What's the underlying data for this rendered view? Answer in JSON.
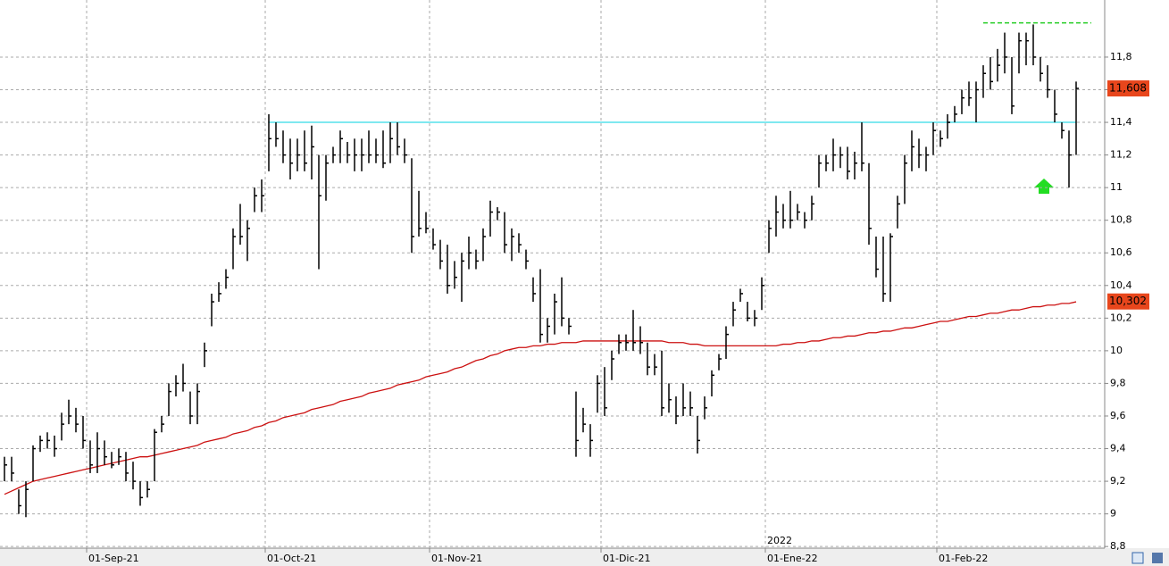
{
  "chart_data": {
    "type": "ohlc",
    "ylim": [
      8.79,
      12.15
    ],
    "yticks": [
      {
        "value": 8.8,
        "label": "8,8"
      },
      9,
      {
        "value": 9.2,
        "label": "9,2"
      },
      {
        "value": 9.4,
        "label": "9,4"
      },
      {
        "value": 9.6,
        "label": "9,6"
      },
      {
        "value": 9.8,
        "label": "9,8"
      },
      10,
      {
        "value": 10.2,
        "label": "10,2"
      },
      {
        "value": 10.4,
        "label": "10,4"
      },
      {
        "value": 10.6,
        "label": "10,6"
      },
      {
        "value": 10.8,
        "label": "10,8"
      },
      11,
      {
        "value": 11.2,
        "label": "11,2"
      },
      {
        "value": 11.4,
        "label": "11,4"
      },
      {
        "value": 11.6,
        "label": "11,6"
      },
      {
        "value": 11.8,
        "label": "11,8"
      }
    ],
    "grid": true,
    "color": "#000000",
    "categories": [
      null,
      null,
      null,
      null,
      null,
      null,
      null,
      null,
      null,
      null,
      null,
      null,
      "01-Sep-21",
      null,
      null,
      null,
      null,
      null,
      null,
      null,
      null,
      null,
      null,
      null,
      null,
      null,
      null,
      null,
      null,
      null,
      null,
      null,
      null,
      null,
      null,
      null,
      null,
      "01-Oct-21",
      null,
      null,
      null,
      null,
      null,
      null,
      null,
      null,
      null,
      null,
      null,
      null,
      null,
      null,
      null,
      null,
      null,
      null,
      null,
      null,
      null,
      null,
      "01-Nov-21",
      null,
      null,
      null,
      null,
      null,
      null,
      null,
      null,
      null,
      null,
      null,
      null,
      null,
      null,
      null,
      null,
      null,
      null,
      null,
      null,
      null,
      null,
      null,
      "01-Dic-21",
      null,
      null,
      null,
      null,
      null,
      null,
      null,
      null,
      null,
      null,
      null,
      null,
      null,
      null,
      null,
      null,
      null,
      null,
      null,
      null,
      null,
      null,
      "01-Ene-22",
      null,
      null,
      null,
      null,
      null,
      null,
      null,
      null,
      null,
      null,
      null,
      null,
      null,
      null,
      null,
      null,
      null,
      null,
      null,
      null,
      null,
      null,
      null,
      "01-Feb-22",
      null,
      null,
      null,
      null,
      null,
      null,
      null,
      null,
      null,
      null,
      null,
      null,
      null,
      null,
      null,
      null,
      null,
      null,
      null
    ],
    "annotations": [
      "2022"
    ],
    "high": [
      9.35,
      9.35,
      9.15,
      9.2,
      9.42,
      9.48,
      9.5,
      9.48,
      9.62,
      9.7,
      9.65,
      9.6,
      9.45,
      9.5,
      9.45,
      9.38,
      9.4,
      9.38,
      9.32,
      9.2,
      9.2,
      9.52,
      9.6,
      9.8,
      9.85,
      9.92,
      9.75,
      9.8,
      10.05,
      10.35,
      10.42,
      10.5,
      10.75,
      10.9,
      10.8,
      11.0,
      11.05,
      11.45,
      11.4,
      11.35,
      11.3,
      11.3,
      11.35,
      11.38,
      11.2,
      11.2,
      11.25,
      11.35,
      11.28,
      11.3,
      11.3,
      11.35,
      11.3,
      11.35,
      11.4,
      11.4,
      11.3,
      11.18,
      10.98,
      10.85,
      10.75,
      10.68,
      10.65,
      10.55,
      10.6,
      10.7,
      10.62,
      10.75,
      10.92,
      10.88,
      10.85,
      10.75,
      10.72,
      10.62,
      10.45,
      10.5,
      10.2,
      10.35,
      10.45,
      10.2,
      9.75,
      9.65,
      9.55,
      9.85,
      9.9,
      10.0,
      10.1,
      10.1,
      10.25,
      10.15,
      10.05,
      9.98,
      10.0,
      9.8,
      9.72,
      9.8,
      9.75,
      9.6,
      9.72,
      9.88,
      9.98,
      10.15,
      10.3,
      10.38,
      10.3,
      10.25,
      10.45,
      10.8,
      10.95,
      10.9,
      10.98,
      10.9,
      10.85,
      10.95,
      11.2,
      11.2,
      11.3,
      11.25,
      11.25,
      11.22,
      11.4,
      11.15,
      10.7,
      10.7,
      10.72,
      10.95,
      11.2,
      11.35,
      11.3,
      11.25,
      11.4,
      11.35,
      11.45,
      11.5,
      11.6,
      11.65,
      11.65,
      11.75,
      11.8,
      11.85,
      11.95,
      11.8,
      11.95,
      11.95,
      12.0,
      11.8,
      11.75,
      11.6,
      11.4,
      11.35,
      11.65
    ],
    "low": [
      9.2,
      9.2,
      9.0,
      8.98,
      9.2,
      9.38,
      9.4,
      9.35,
      9.45,
      9.55,
      9.5,
      9.4,
      9.25,
      9.25,
      9.3,
      9.28,
      9.3,
      9.2,
      9.15,
      9.05,
      9.1,
      9.2,
      9.5,
      9.6,
      9.72,
      9.75,
      9.55,
      9.55,
      9.9,
      10.15,
      10.3,
      10.38,
      10.5,
      10.65,
      10.55,
      10.85,
      10.85,
      11.1,
      11.25,
      11.15,
      11.05,
      11.1,
      11.1,
      11.05,
      10.5,
      10.92,
      11.15,
      11.15,
      11.15,
      11.1,
      11.1,
      11.15,
      11.15,
      11.12,
      11.15,
      11.2,
      11.15,
      10.6,
      10.7,
      10.72,
      10.62,
      10.5,
      10.35,
      10.38,
      10.3,
      10.5,
      10.5,
      10.55,
      10.7,
      10.8,
      10.6,
      10.55,
      10.6,
      10.5,
      10.3,
      10.05,
      10.05,
      10.1,
      10.15,
      10.1,
      9.35,
      9.5,
      9.35,
      9.62,
      9.6,
      9.82,
      9.98,
      10.0,
      10.0,
      9.98,
      9.85,
      9.85,
      9.6,
      9.62,
      9.55,
      9.6,
      9.6,
      9.37,
      9.58,
      9.72,
      9.88,
      9.95,
      10.15,
      10.3,
      10.18,
      10.15,
      10.25,
      10.6,
      10.7,
      10.75,
      10.75,
      10.8,
      10.75,
      10.8,
      11.0,
      11.1,
      11.1,
      11.12,
      11.05,
      11.05,
      11.1,
      10.65,
      10.45,
      10.3,
      10.3,
      10.75,
      10.9,
      11.1,
      11.12,
      11.1,
      11.2,
      11.25,
      11.3,
      11.4,
      11.45,
      11.5,
      11.4,
      11.55,
      11.6,
      11.65,
      11.7,
      11.45,
      11.7,
      11.75,
      11.75,
      11.65,
      11.55,
      11.4,
      11.3,
      11.0,
      11.2
    ],
    "close": [
      9.3,
      9.25,
      9.05,
      9.15,
      9.4,
      9.45,
      9.45,
      9.4,
      9.55,
      9.6,
      9.55,
      9.45,
      9.3,
      9.4,
      9.35,
      9.3,
      9.35,
      9.25,
      9.2,
      9.1,
      9.15,
      9.5,
      9.55,
      9.75,
      9.8,
      9.8,
      9.6,
      9.75,
      10.0,
      10.3,
      10.35,
      10.45,
      10.7,
      10.7,
      10.75,
      10.95,
      10.95,
      11.3,
      11.3,
      11.2,
      11.15,
      11.2,
      11.15,
      11.25,
      10.95,
      11.15,
      11.2,
      11.3,
      11.2,
      11.2,
      11.2,
      11.2,
      11.2,
      11.15,
      11.3,
      11.25,
      11.2,
      10.7,
      10.75,
      10.75,
      10.65,
      10.55,
      10.4,
      10.45,
      10.55,
      10.6,
      10.55,
      10.7,
      10.85,
      10.85,
      10.65,
      10.7,
      10.65,
      10.55,
      10.35,
      10.1,
      10.15,
      10.3,
      10.2,
      10.15,
      9.45,
      9.55,
      9.45,
      9.8,
      9.65,
      9.95,
      10.05,
      10.05,
      10.05,
      10.05,
      9.9,
      9.9,
      9.65,
      9.7,
      9.6,
      9.65,
      9.65,
      9.45,
      9.65,
      9.85,
      9.95,
      10.1,
      10.25,
      10.35,
      10.2,
      10.2,
      10.4,
      10.75,
      10.85,
      10.8,
      10.8,
      10.85,
      10.8,
      10.9,
      11.15,
      11.15,
      11.2,
      11.2,
      11.1,
      11.15,
      11.15,
      10.75,
      10.5,
      10.35,
      10.7,
      10.9,
      11.15,
      11.25,
      11.2,
      11.2,
      11.35,
      11.3,
      11.4,
      11.45,
      11.55,
      11.55,
      11.6,
      11.7,
      11.65,
      11.75,
      11.8,
      11.5,
      11.9,
      11.9,
      11.8,
      11.7,
      11.6,
      11.45,
      11.35,
      11.2,
      11.608
    ],
    "ma": {
      "color": "#cc1111",
      "values": [
        9.12,
        9.14,
        9.16,
        9.18,
        9.2,
        9.21,
        9.22,
        9.23,
        9.24,
        9.25,
        9.26,
        9.27,
        9.28,
        9.29,
        9.3,
        9.31,
        9.32,
        9.33,
        9.34,
        9.35,
        9.35,
        9.36,
        9.37,
        9.38,
        9.39,
        9.4,
        9.41,
        9.42,
        9.44,
        9.45,
        9.46,
        9.47,
        9.49,
        9.5,
        9.51,
        9.53,
        9.54,
        9.56,
        9.57,
        9.59,
        9.6,
        9.61,
        9.62,
        9.64,
        9.65,
        9.66,
        9.67,
        9.69,
        9.7,
        9.71,
        9.72,
        9.74,
        9.75,
        9.76,
        9.77,
        9.79,
        9.8,
        9.81,
        9.82,
        9.84,
        9.85,
        9.86,
        9.87,
        9.89,
        9.9,
        9.92,
        9.94,
        9.95,
        9.97,
        9.98,
        10.0,
        10.01,
        10.02,
        10.02,
        10.03,
        10.03,
        10.04,
        10.04,
        10.05,
        10.05,
        10.05,
        10.06,
        10.06,
        10.06,
        10.06,
        10.06,
        10.06,
        10.06,
        10.06,
        10.06,
        10.06,
        10.06,
        10.06,
        10.05,
        10.05,
        10.05,
        10.04,
        10.04,
        10.03,
        10.03,
        10.03,
        10.03,
        10.03,
        10.03,
        10.03,
        10.03,
        10.03,
        10.03,
        10.03,
        10.04,
        10.04,
        10.05,
        10.05,
        10.06,
        10.06,
        10.07,
        10.08,
        10.08,
        10.09,
        10.09,
        10.1,
        10.11,
        10.11,
        10.12,
        10.12,
        10.13,
        10.14,
        10.14,
        10.15,
        10.16,
        10.17,
        10.18,
        10.18,
        10.19,
        10.2,
        10.21,
        10.21,
        10.22,
        10.23,
        10.23,
        10.24,
        10.25,
        10.25,
        10.26,
        10.27,
        10.27,
        10.28,
        10.28,
        10.29,
        10.29,
        10.3
      ]
    },
    "levels": [
      {
        "value": 11.4,
        "color": "#7fe8f0",
        "dash": false
      },
      {
        "value": 12.01,
        "color": "#22cc22",
        "dash": true
      }
    ],
    "price_labels": [
      {
        "value": 11.608,
        "label": "11,608",
        "color": "#e8461c"
      },
      {
        "value": 10.302,
        "label": "10,302",
        "color": "#e8461c"
      }
    ]
  }
}
